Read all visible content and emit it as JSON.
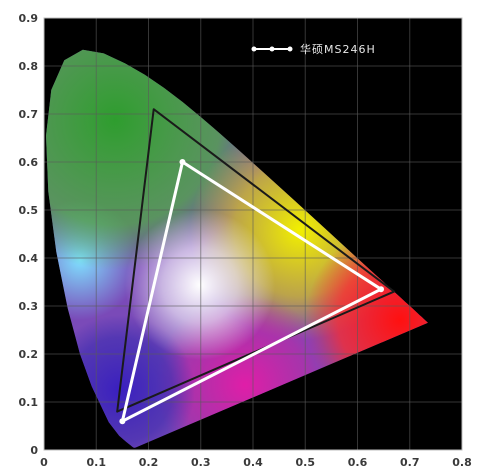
{
  "chart_data": {
    "type": "scatter",
    "title": "",
    "xlabel": "",
    "ylabel": "",
    "xlim": [
      0,
      0.8
    ],
    "ylim": [
      0,
      0.9
    ],
    "x_ticks": [
      "0",
      "0.1",
      "0.2",
      "0.3",
      "0.4",
      "0.5",
      "0.6",
      "0.7",
      "0.8"
    ],
    "y_ticks": [
      "0",
      "0.1",
      "0.2",
      "0.3",
      "0.4",
      "0.5",
      "0.6",
      "0.7",
      "0.8",
      "0.9"
    ],
    "grid": true,
    "legend_position": "top-right",
    "background": "#000000",
    "series": [
      {
        "name": "华硕MS246H",
        "color": "#ffffff",
        "closed": true,
        "points": [
          {
            "x": 0.265,
            "y": 0.6
          },
          {
            "x": 0.645,
            "y": 0.335
          },
          {
            "x": 0.15,
            "y": 0.06
          }
        ]
      },
      {
        "color": "#1a1a1a",
        "closed": true,
        "points": [
          {
            "x": 0.21,
            "y": 0.71
          },
          {
            "x": 0.67,
            "y": 0.33
          },
          {
            "x": 0.14,
            "y": 0.08
          }
        ]
      }
    ]
  }
}
